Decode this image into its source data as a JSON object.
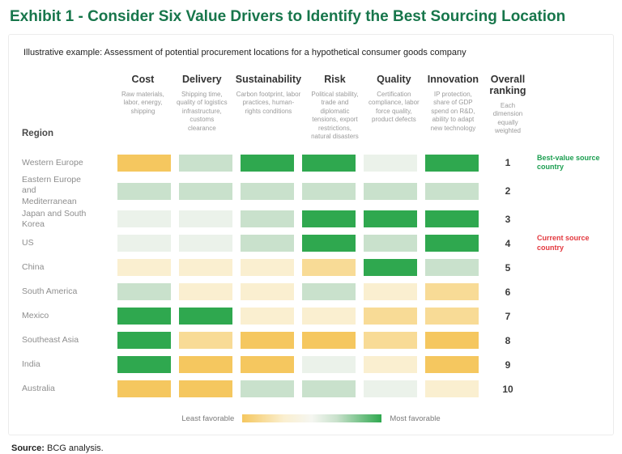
{
  "title": "Exhibit 1 - Consider Six Value Drivers to Identify the Best Sourcing Location",
  "subtitle": "Illustrative example: Assessment of potential procurement locations for a hypothetical consumer goods company",
  "region_header": "Region",
  "overall_header": {
    "label": "Overall ranking",
    "description": "Each dimension equally weighted"
  },
  "legend": {
    "least_label": "Least favorable",
    "most_label": "Most favorable"
  },
  "source": {
    "label": "Source:",
    "text": "BCG analysis."
  },
  "colors": {
    "title_green": "#17764B",
    "annotation_green": "#1B9E50",
    "annotation_red": "#E3383E",
    "scale": {
      "amber": "#F5C75F",
      "light-amber": "#F8DB96",
      "pale-yellow": "#FAEFD0",
      "pale-green": "#EBF2EA",
      "light-green": "#C9E1CC",
      "green": "#2FA84F"
    }
  },
  "chart_data": {
    "type": "heatmap",
    "title": "Exhibit 1 - Consider Six Value Drivers to Identify the Best Sourcing Location",
    "scale_note": "Cell colors range from amber (least favorable) to green (most favorable)",
    "columns": [
      {
        "label": "Cost",
        "description": "Raw materials, labor, energy, shipping"
      },
      {
        "label": "Delivery",
        "description": "Shipping time, quality of logistics infrastructure, customs clearance"
      },
      {
        "label": "Sustainability",
        "description": "Carbon footprint, labor practices, human-rights conditions"
      },
      {
        "label": "Risk",
        "description": "Political stability, trade and diplomatic tensions, export restrictions, natural disasters"
      },
      {
        "label": "Quality",
        "description": "Certification compliance, labor force quality, product defects"
      },
      {
        "label": "Innovation",
        "description": "IP protection, share of GDP spend on R&D, ability to adapt new technology"
      }
    ],
    "rows": [
      {
        "region": "Western Europe",
        "rank": 1,
        "values": [
          "amber",
          "light-green",
          "green",
          "green",
          "pale-green",
          "green"
        ],
        "note": "Best-value source country",
        "note_color": "green"
      },
      {
        "region": "Eastern Europe and Mediterranean",
        "rank": 2,
        "values": [
          "light-green",
          "light-green",
          "light-green",
          "light-green",
          "light-green",
          "light-green"
        ],
        "note": "",
        "note_color": ""
      },
      {
        "region": "Japan and South Korea",
        "rank": 3,
        "values": [
          "pale-green",
          "pale-green",
          "light-green",
          "green",
          "green",
          "green"
        ],
        "note": "",
        "note_color": ""
      },
      {
        "region": "US",
        "rank": 4,
        "values": [
          "pale-green",
          "pale-green",
          "light-green",
          "green",
          "light-green",
          "green"
        ],
        "note": "Current source country",
        "note_color": "red"
      },
      {
        "region": "China",
        "rank": 5,
        "values": [
          "pale-yellow",
          "pale-yellow",
          "pale-yellow",
          "light-amber",
          "green",
          "light-green"
        ],
        "note": "",
        "note_color": ""
      },
      {
        "region": "South America",
        "rank": 6,
        "values": [
          "light-green",
          "pale-yellow",
          "pale-yellow",
          "light-green",
          "pale-yellow",
          "light-amber"
        ],
        "note": "",
        "note_color": ""
      },
      {
        "region": "Mexico",
        "rank": 7,
        "values": [
          "green",
          "green",
          "pale-yellow",
          "pale-yellow",
          "light-amber",
          "light-amber"
        ],
        "note": "",
        "note_color": ""
      },
      {
        "region": "Southeast Asia",
        "rank": 8,
        "values": [
          "green",
          "light-amber",
          "amber",
          "amber",
          "light-amber",
          "amber"
        ],
        "note": "",
        "note_color": ""
      },
      {
        "region": "India",
        "rank": 9,
        "values": [
          "green",
          "amber",
          "amber",
          "pale-green",
          "pale-yellow",
          "amber"
        ],
        "note": "",
        "note_color": ""
      },
      {
        "region": "Australia",
        "rank": 10,
        "values": [
          "amber",
          "amber",
          "light-green",
          "light-green",
          "pale-green",
          "pale-yellow"
        ],
        "note": "",
        "note_color": ""
      }
    ]
  }
}
